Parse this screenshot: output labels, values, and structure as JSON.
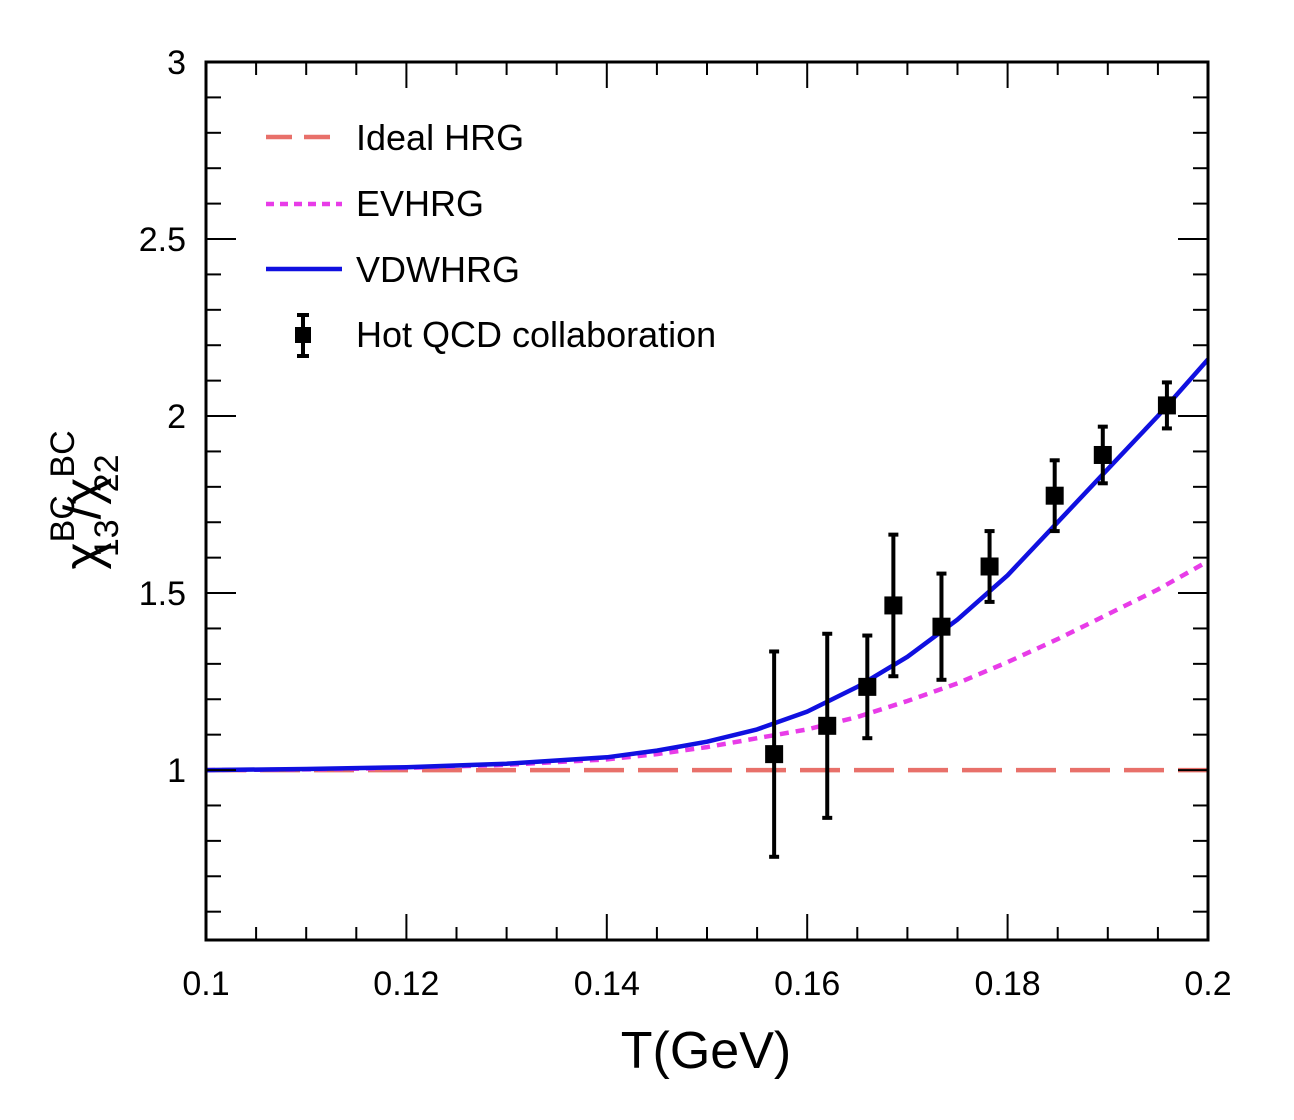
{
  "chart_data": {
    "type": "line",
    "xlabel": "T(GeV)",
    "ylabel": {
      "base1": "χ",
      "sup1": "BC",
      "sub1": "13",
      "slash": "/",
      "base2": "χ",
      "sup2": "BC",
      "sub2": "22"
    },
    "xlim": [
      0.1,
      0.2
    ],
    "ylim": [
      0.52,
      3.0
    ],
    "x_ticks": [
      "0.1",
      "0.12",
      "0.14",
      "0.16",
      "0.18",
      "0.2"
    ],
    "y_ticks": [
      "1",
      "1.5",
      "2",
      "2.5",
      "3"
    ],
    "legend_position": "top-left",
    "series": [
      {
        "name": "Ideal HRG",
        "style": "dashed",
        "color": "#e8706a",
        "x": [
          0.1,
          0.2
        ],
        "y": [
          1.0,
          1.0
        ]
      },
      {
        "name": "EVHRG",
        "style": "dotted",
        "color": "#e83ce8",
        "x": [
          0.1,
          0.11,
          0.12,
          0.13,
          0.14,
          0.145,
          0.15,
          0.155,
          0.16,
          0.165,
          0.17,
          0.175,
          0.18,
          0.185,
          0.19,
          0.195,
          0.2
        ],
        "y": [
          1.0,
          1.002,
          1.006,
          1.015,
          1.03,
          1.045,
          1.065,
          1.09,
          1.115,
          1.15,
          1.195,
          1.245,
          1.305,
          1.37,
          1.44,
          1.51,
          1.59
        ]
      },
      {
        "name": "VDWHRG",
        "style": "solid",
        "color": "#1010e0",
        "x": [
          0.1,
          0.11,
          0.12,
          0.13,
          0.14,
          0.145,
          0.15,
          0.155,
          0.16,
          0.165,
          0.17,
          0.175,
          0.18,
          0.185,
          0.19,
          0.195,
          0.2
        ],
        "y": [
          1.0,
          1.003,
          1.008,
          1.018,
          1.036,
          1.055,
          1.08,
          1.115,
          1.165,
          1.235,
          1.32,
          1.425,
          1.55,
          1.7,
          1.85,
          2.0,
          2.16
        ]
      },
      {
        "name": "Hot QCD collaboration",
        "style": "points",
        "color": "#000000",
        "points": [
          {
            "x": 0.1567,
            "y": 1.045,
            "err": 0.29
          },
          {
            "x": 0.162,
            "y": 1.125,
            "err": 0.26
          },
          {
            "x": 0.166,
            "y": 1.235,
            "err": 0.145
          },
          {
            "x": 0.1686,
            "y": 1.465,
            "err": 0.2
          },
          {
            "x": 0.1734,
            "y": 1.405,
            "err": 0.15
          },
          {
            "x": 0.1782,
            "y": 1.575,
            "err": 0.1
          },
          {
            "x": 0.1847,
            "y": 1.775,
            "err": 0.1
          },
          {
            "x": 0.1895,
            "y": 1.89,
            "err": 0.08
          },
          {
            "x": 0.1959,
            "y": 2.03,
            "err": 0.065
          }
        ]
      }
    ]
  }
}
